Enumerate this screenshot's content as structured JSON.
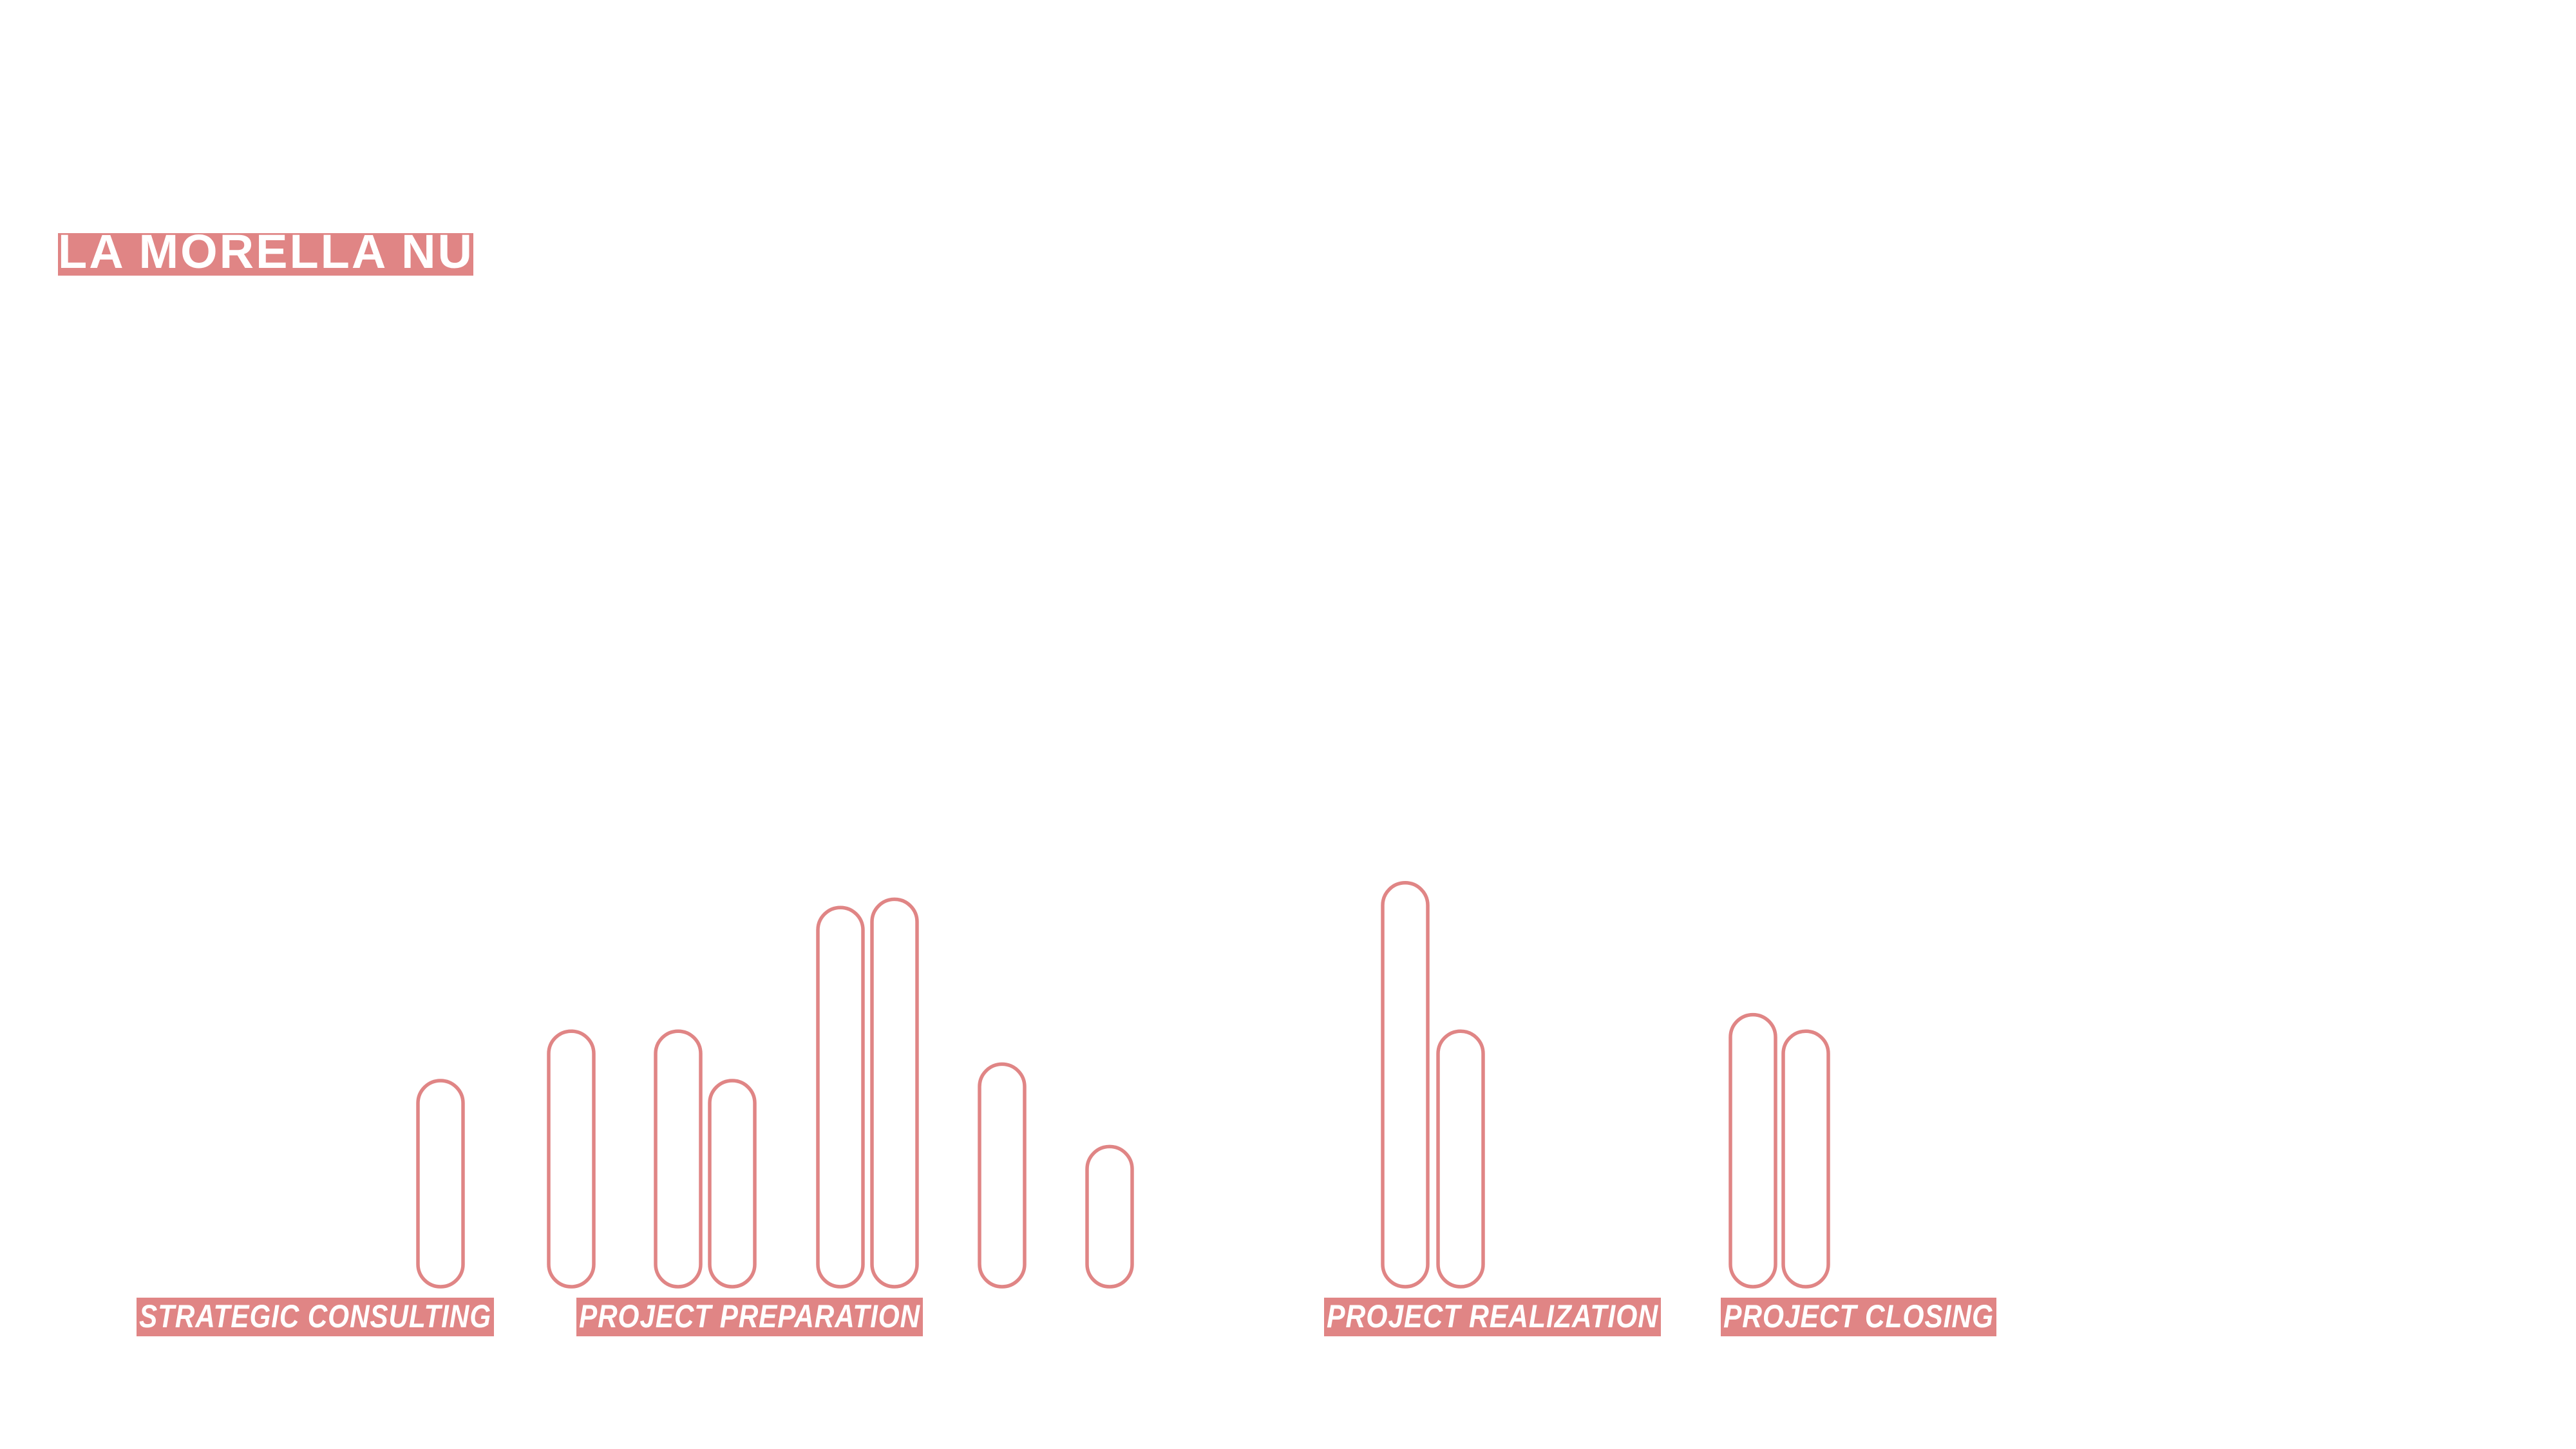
{
  "colors": {
    "accent": "#e08585",
    "label_text": "#ffffff",
    "background": "#ffffff"
  },
  "title": "LA MORELLA NUTS",
  "chart_data": {
    "type": "bar",
    "bar_style": "outlined rounded capsule",
    "grid": false,
    "legend": "none",
    "ylim": [
      0,
      100
    ],
    "values": [
      50,
      62,
      62,
      50,
      92,
      94,
      54,
      34,
      98,
      62,
      66,
      62
    ],
    "phases": [
      {
        "label": "STRATEGIC CONSULTING",
        "bar_count": 1
      },
      {
        "label": "PROJECT PREPARATION",
        "bar_count": 7
      },
      {
        "label": "PROJECT REALIZATION",
        "bar_count": 2
      },
      {
        "label": "PROJECT CLOSING",
        "bar_count": 2
      }
    ]
  }
}
